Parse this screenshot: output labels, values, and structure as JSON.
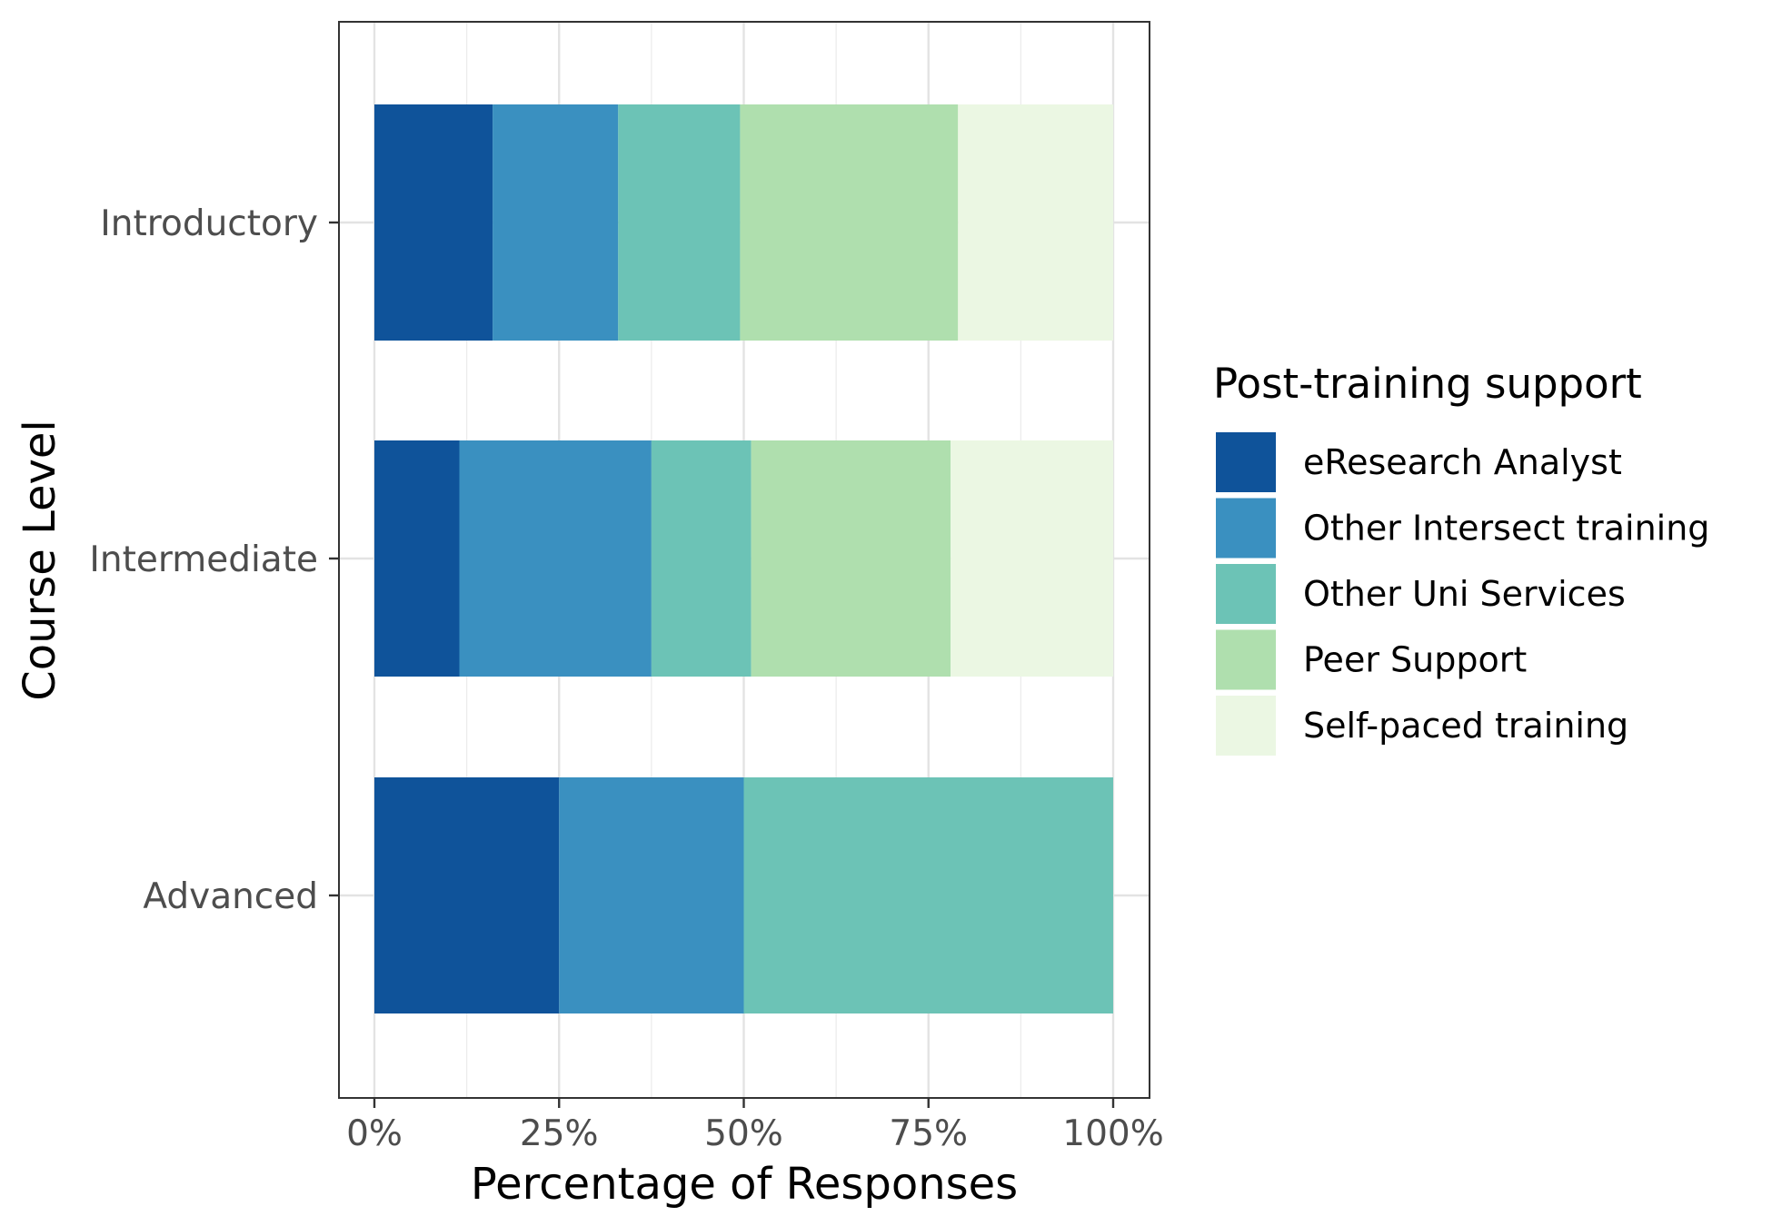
{
  "chart_data": {
    "type": "bar",
    "orientation": "horizontal",
    "stacked": true,
    "percent": true,
    "xlabel": "Percentage of Responses",
    "ylabel": "Course Level",
    "xlim": [
      0,
      100
    ],
    "x_ticks": [
      "0%",
      "25%",
      "50%",
      "75%",
      "100%"
    ],
    "categories": [
      "Introductory",
      "Intermediate",
      "Advanced"
    ],
    "grid": true,
    "legend_position": "right",
    "legend_title": "Post-training support",
    "series": [
      {
        "name": "eResearch Analyst",
        "color": "#0f539a",
        "values": [
          16,
          11.5,
          25
        ]
      },
      {
        "name": "Other Intersect training",
        "color": "#3a90c0",
        "values": [
          17,
          26,
          25
        ]
      },
      {
        "name": "Other Uni Services",
        "color": "#6cc3b6",
        "values": [
          16.5,
          13.5,
          50
        ]
      },
      {
        "name": "Peer Support",
        "color": "#afdfae",
        "values": [
          29.5,
          27,
          0
        ]
      },
      {
        "name": "Self-paced training",
        "color": "#ebf7e3",
        "values": [
          21,
          22,
          0
        ]
      }
    ]
  }
}
